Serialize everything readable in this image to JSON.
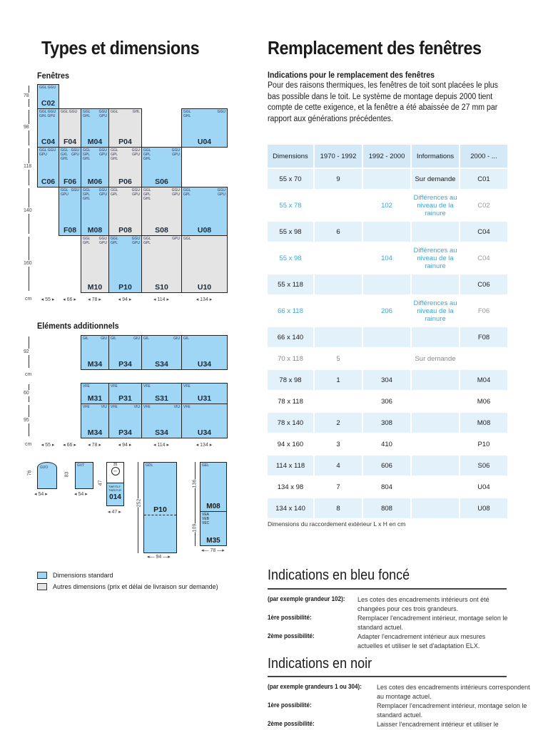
{
  "left": {
    "title": "Types et dimensions",
    "fenetres_title": "Fenêtres",
    "elements_title": "Eléments additionnels",
    "row_heights": [
      "78",
      "98",
      "118",
      "140",
      "160"
    ],
    "unit": "cm",
    "widths": [
      "55",
      "66",
      "78",
      "94",
      "114",
      "134"
    ],
    "fenetres": [
      {
        "name": "C02",
        "color": "blue",
        "l": "GGL GGU",
        "r": ""
      },
      {
        "name": "C04",
        "color": "blue",
        "l": "GGL GGU\nGHL GPU",
        "r": ""
      },
      {
        "name": "F04",
        "color": "grey",
        "l": "GGL GGU",
        "r": ""
      },
      {
        "name": "M04",
        "color": "blue",
        "l": "GGL\nGHL",
        "r": "GGU\nGPU"
      },
      {
        "name": "P04",
        "color": "grey",
        "l": "GGL",
        "r": "GHL"
      },
      {
        "name": "U04",
        "color": "blue",
        "l": "GGL\nGHL",
        "r": "GGU"
      },
      {
        "name": "C06",
        "color": "blue",
        "l": "GGL GGU\nGPU",
        "r": ""
      },
      {
        "name": "F06",
        "color": "blue",
        "l": "GGL\nGXL\nGHL",
        "r": "GGU\nGPU"
      },
      {
        "name": "M06",
        "color": "blue",
        "l": "GGL\nGPL\nGHL",
        "r": "GGU\nGPU"
      },
      {
        "name": "P06",
        "color": "grey",
        "l": "GGL\nGPL\nGHL",
        "r": "GGU\nGPU"
      },
      {
        "name": "S06",
        "color": "blue",
        "l": "GGL\nGPL\nGHL",
        "r": "GGU\nGPU"
      },
      {
        "name": "F08",
        "color": "blue",
        "l": "GGL\nGPU",
        "r": "GGU"
      },
      {
        "name": "M08",
        "color": "blue",
        "l": "GGL\nGPL\nGHL",
        "r": "GGU\nGPU"
      },
      {
        "name": "P08",
        "color": "grey",
        "l": "GGL\nGPL",
        "r": "GGU\nGPU"
      },
      {
        "name": "S08",
        "color": "grey",
        "l": "GGL\nGPL\nGHL",
        "r": "GGU\nGPU"
      },
      {
        "name": "U08",
        "color": "blue",
        "l": "GGL\nGPL",
        "r": "GGU\nGPU"
      },
      {
        "name": "M10",
        "color": "grey",
        "l": "GGL\nGPL",
        "r": "GGU\nGPU"
      },
      {
        "name": "P10",
        "color": "blue",
        "l": "GGL\nGPL",
        "r": "GGU\nGPU"
      },
      {
        "name": "S10",
        "color": "grey",
        "l": "GGL\nGPL",
        "r": "GPU"
      },
      {
        "name": "U10",
        "color": "grey",
        "l": "GGL",
        "r": ""
      }
    ],
    "elements_heights": [
      "92",
      "60",
      "95"
    ],
    "elements": [
      {
        "name": "M34",
        "color": "blue",
        "l": "GIL",
        "r": "GIU"
      },
      {
        "name": "P34",
        "color": "blue",
        "l": "GIL",
        "r": "GIU"
      },
      {
        "name": "S34",
        "color": "blue",
        "l": "GIL",
        "r": "GIU"
      },
      {
        "name": "U34",
        "color": "blue",
        "l": "GIL",
        "r": ""
      },
      {
        "name": "M31",
        "color": "blue",
        "l": "VFE",
        "r": ""
      },
      {
        "name": "P31",
        "color": "blue",
        "l": "VFE",
        "r": ""
      },
      {
        "name": "S31",
        "color": "blue",
        "l": "VFE",
        "r": ""
      },
      {
        "name": "U31",
        "color": "blue",
        "l": "VFE",
        "r": ""
      },
      {
        "name": "M34",
        "color": "blue",
        "l": "VFE",
        "r": "VIU"
      },
      {
        "name": "P34",
        "color": "blue",
        "l": "VFE",
        "r": "VIU"
      },
      {
        "name": "S34",
        "color": "blue",
        "l": "VFE",
        "r": "VIU"
      },
      {
        "name": "U34",
        "color": "blue",
        "l": "VFE",
        "r": ""
      }
    ],
    "extras": {
      "gvo": {
        "code": "GVO",
        "h": "76",
        "w": "54"
      },
      "gvt": {
        "code": "GVT",
        "h": "83",
        "w": "54"
      },
      "o14": {
        "top": "35",
        "codes": "TWF/TLF\nTWR/TLR",
        "name": "014",
        "h": "47",
        "w": "47"
      },
      "gdl": {
        "code": "GDL",
        "name": "P10",
        "h": "252",
        "w": "94"
      },
      "gel": {
        "code": "GEL",
        "name_top": "M08",
        "codes": "VEA\nVEB\nVEC",
        "name_bottom": "M35",
        "h_top": "136",
        "h_bottom": "109",
        "w": "78"
      }
    },
    "legend": [
      {
        "color": "#9fd6f5",
        "label": "Dimensions standard"
      },
      {
        "color": "#e4e4e4",
        "label": "Autres dimensions (prix et délai de livraison sur demande)"
      }
    ]
  },
  "right": {
    "title": "Remplacement des fenêtres",
    "subtitle": "Indications pour le remplacement des fenêtres",
    "paragraph": "Pour des raisons thermiques, les fenêtres de toit sont placées le plus bas possible dans le toit. Le système de montage depuis 2000 tient compte de cette exigence, et la fenêtre a été abaissée de 27 mm par rapport aux générations précédentes.",
    "table": {
      "headers": [
        "Dimensions",
        "1970 - 1992",
        "1992 - 2000",
        "Informations",
        "2000 - ..."
      ],
      "rows": [
        {
          "style": "blue",
          "cells": [
            "55 x 70",
            "9",
            "",
            "Sur demande",
            "C01"
          ]
        },
        {
          "style": "wblue",
          "cells": [
            "55 x 78",
            "",
            "102",
            "Différences au niveau de la rainure",
            "C02"
          ]
        },
        {
          "style": "blue",
          "cells": [
            "55 x 98",
            "6",
            "",
            "",
            "C04"
          ]
        },
        {
          "style": "wblue",
          "cells": [
            "55 x 98",
            "",
            "104",
            "Différences au niveau de la rainure",
            "C04"
          ]
        },
        {
          "style": "blue",
          "cells": [
            "55 x 118",
            "",
            "",
            "",
            "C06"
          ]
        },
        {
          "style": "wblue",
          "cells": [
            "66 x 118",
            "",
            "206",
            "Différences au niveau de la rainure",
            "F06"
          ]
        },
        {
          "style": "blue",
          "cells": [
            "66 x 140",
            "",
            "",
            "",
            "F08"
          ]
        },
        {
          "style": "grey",
          "cells": [
            "70 x 118",
            "5",
            "",
            "Sur demande",
            ""
          ]
        },
        {
          "style": "blue",
          "cells": [
            "78 x 98",
            "1",
            "304",
            "",
            "M04"
          ]
        },
        {
          "style": "white",
          "cells": [
            "78 x 118",
            "",
            "306",
            "",
            "M06"
          ]
        },
        {
          "style": "blue",
          "cells": [
            "78 x 140",
            "2",
            "308",
            "",
            "M08"
          ]
        },
        {
          "style": "white",
          "cells": [
            "94 x 160",
            "3",
            "410",
            "",
            "P10"
          ]
        },
        {
          "style": "blue",
          "cells": [
            "114 x 118",
            "4",
            "606",
            "",
            "S06"
          ]
        },
        {
          "style": "white",
          "cells": [
            "134 x 98",
            "7",
            "804",
            "",
            "U04"
          ]
        },
        {
          "style": "blue",
          "cells": [
            "134 x 140",
            "8",
            "808",
            "",
            "U08"
          ]
        }
      ],
      "note": "Dimensions du raccordement extérieur L x H en cm"
    },
    "blue_section": {
      "title": "Indications en bleu foncé",
      "items": [
        {
          "label": "(par exemple grandeur 102):",
          "text": "Les cotes des encadrements intérieurs ont été changées pour ces trois grandeurs."
        },
        {
          "label": "1ère possibilité:",
          "text": "Remplacer l'encadrement intérieur, montage selon le standard actuel."
        },
        {
          "label": "2ème possibilité:",
          "text": "Adapter l'encadrement intérieur aux mesures actuelles et utiliser le set d'adaptation ELX."
        }
      ]
    },
    "black_section": {
      "title": "Indications en noir",
      "items": [
        {
          "label": "(par exemple grandeurs 1 ou 304):",
          "text": "Les cotes des encadrements intérieurs correspondent au montage actuel."
        },
        {
          "label": "1ère possibilité:",
          "text": "Remplacer l'encadrement intérieur, montage selon le standard actuel."
        },
        {
          "label": "2ème possibilité:",
          "text": "Laisser l'encadrement intérieur et utiliser le"
        }
      ]
    }
  }
}
